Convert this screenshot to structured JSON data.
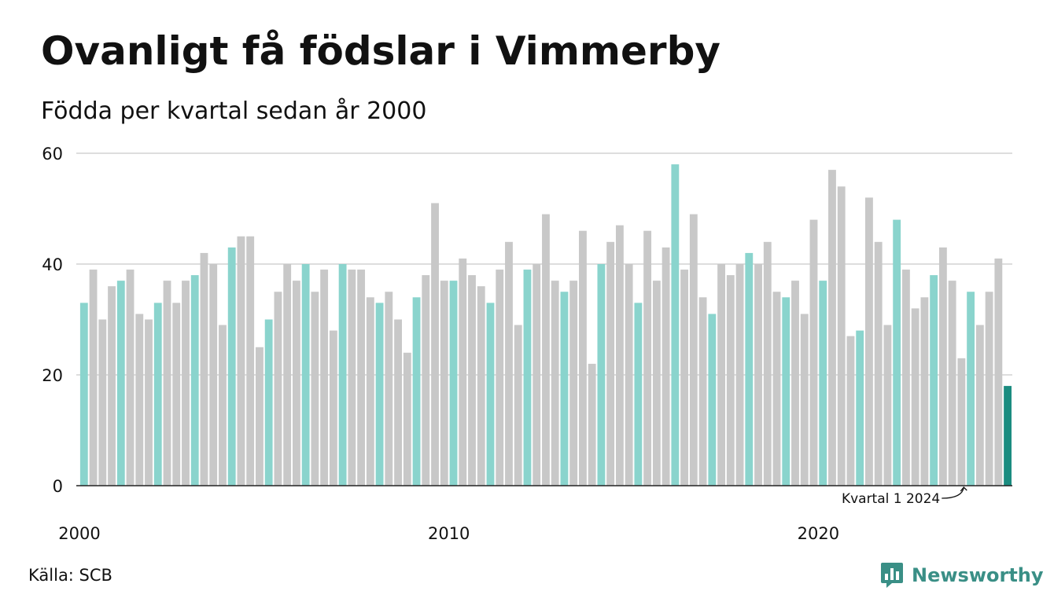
{
  "title": "Ovanligt få födslar i Vimmerby",
  "subtitle": "Födda per kvartal sedan år 2000",
  "source": "Källa: SCB",
  "brand": {
    "name": "Newsworthy",
    "icon": "newsworthy-logo-icon"
  },
  "colors": {
    "highlight": "#8ad4cd",
    "regular": "#c8c8c8",
    "latest": "#1b8c80",
    "grid": "#dddddd",
    "axis": "#222222",
    "text": "#111111"
  },
  "chart_data": {
    "type": "bar",
    "xlabel": "",
    "ylabel": "",
    "ylim": [
      0,
      60
    ],
    "yticks": [
      0,
      20,
      40,
      60
    ],
    "grid": true,
    "start_year": 2000,
    "quarters_per_year": 4,
    "x_tick_labels": [
      "2000",
      "2010",
      "2020"
    ],
    "annotation": {
      "text": "Kvartal 1 2024",
      "period": "2024 Q1"
    },
    "highlight_quarter": 1,
    "values": [
      33,
      39,
      30,
      36,
      37,
      39,
      31,
      30,
      33,
      37,
      33,
      37,
      38,
      42,
      40,
      29,
      43,
      45,
      45,
      25,
      30,
      35,
      40,
      37,
      40,
      35,
      39,
      28,
      40,
      39,
      39,
      34,
      33,
      35,
      30,
      24,
      34,
      38,
      51,
      37,
      37,
      41,
      38,
      36,
      33,
      39,
      44,
      29,
      39,
      40,
      49,
      37,
      35,
      37,
      46,
      22,
      40,
      44,
      47,
      40,
      33,
      46,
      37,
      43,
      58,
      39,
      49,
      34,
      31,
      40,
      38,
      40,
      42,
      40,
      44,
      35,
      34,
      37,
      31,
      48,
      37,
      57,
      54,
      27,
      28,
      52,
      44,
      29,
      48,
      39,
      32,
      34,
      38,
      43,
      37,
      23,
      35,
      29,
      35,
      41,
      18
    ]
  }
}
